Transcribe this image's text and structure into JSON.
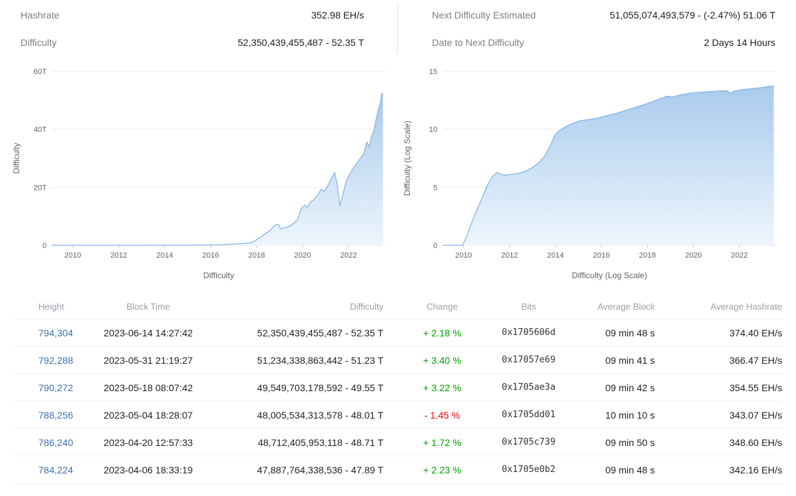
{
  "stats": {
    "left": [
      {
        "label": "Hashrate",
        "value": "352.98 EH/s"
      },
      {
        "label": "Difficulty",
        "value": "52,350,439,455,487 - 52.35 T"
      }
    ],
    "right": [
      {
        "label": "Next Difficulty Estimated",
        "value": "51,055,074,493,579 - (-2.47%) 51.06 T"
      },
      {
        "label": "Date to Next Difficulty",
        "value": "2 Days 14 Hours"
      }
    ]
  },
  "colors": {
    "link_blue": "#3d6fad",
    "change_up": "#00a000",
    "change_down": "#e60000",
    "chart_line": "#7fb0e3",
    "chart_fill_top": "#a9cbec",
    "chart_fill_bottom": "#edf5fd",
    "gridline": "#e8e8e8"
  },
  "chart_data": [
    {
      "type": "area",
      "id": "difficulty-linear",
      "title": "",
      "xlabel": "Difficulty",
      "ylabel": "Difficulty",
      "xlim": [
        2009.1,
        2023.6
      ],
      "ylim": [
        0,
        60
      ],
      "yticks": [
        {
          "v": 0,
          "label": "0"
        },
        {
          "v": 20,
          "label": "20T"
        },
        {
          "v": 40,
          "label": "40T"
        },
        {
          "v": 60,
          "label": "60T"
        }
      ],
      "xticks": [
        2010,
        2012,
        2014,
        2016,
        2018,
        2020,
        2022
      ],
      "unit": "T (trillions of difficulty)",
      "x": [
        2009.1,
        2011,
        2013,
        2015,
        2016,
        2016.5,
        2017,
        2017.4,
        2017.8,
        2018.0,
        2018.2,
        2018.4,
        2018.6,
        2018.8,
        2018.95,
        2019.05,
        2019.2,
        2019.4,
        2019.6,
        2019.8,
        2019.95,
        2020.1,
        2020.2,
        2020.35,
        2020.5,
        2020.65,
        2020.8,
        2020.95,
        2021.1,
        2021.25,
        2021.4,
        2021.5,
        2021.62,
        2021.75,
        2021.9,
        2022.05,
        2022.2,
        2022.35,
        2022.5,
        2022.65,
        2022.8,
        2022.9,
        2023.0,
        2023.1,
        2023.2,
        2023.3,
        2023.38,
        2023.45,
        2023.5
      ],
      "values": [
        0,
        0.001,
        0.004,
        0.047,
        0.11,
        0.21,
        0.42,
        0.6,
        1.0,
        1.9,
        3.0,
        4.1,
        5.2,
        6.9,
        7.2,
        5.6,
        6.1,
        6.4,
        7.5,
        9.0,
        12.8,
        13.9,
        13.0,
        15.0,
        15.8,
        17.3,
        19.3,
        18.7,
        20.6,
        23.0,
        25.0,
        21.4,
        13.6,
        17.3,
        22.3,
        24.4,
        26.6,
        28.1,
        29.8,
        31.3,
        35.6,
        34.0,
        37.6,
        39.4,
        43.5,
        46.9,
        49.0,
        52.35,
        52.3
      ]
    },
    {
      "type": "area",
      "id": "difficulty-log",
      "title": "",
      "xlabel": "Difficulty (Log Scale)",
      "ylabel": "Difficulty (Log Scale)",
      "xlim": [
        2009.1,
        2023.6
      ],
      "ylim": [
        0,
        15
      ],
      "yticks": [
        {
          "v": 0,
          "label": "0"
        },
        {
          "v": 5,
          "label": "5"
        },
        {
          "v": 10,
          "label": "10"
        },
        {
          "v": 15,
          "label": "15"
        }
      ],
      "xticks": [
        2010,
        2012,
        2014,
        2016,
        2018,
        2020,
        2022
      ],
      "unit": "log10(difficulty)",
      "x": [
        2009.1,
        2009.95,
        2010.1,
        2010.25,
        2010.4,
        2010.55,
        2010.7,
        2010.85,
        2011.0,
        2011.15,
        2011.3,
        2011.45,
        2011.6,
        2011.8,
        2012.0,
        2012.25,
        2012.5,
        2012.75,
        2013.0,
        2013.25,
        2013.5,
        2013.75,
        2014.0,
        2014.25,
        2014.5,
        2014.8,
        2015.1,
        2015.5,
        2015.9,
        2016.3,
        2016.7,
        2017.1,
        2017.5,
        2017.9,
        2018.3,
        2018.6,
        2018.85,
        2019.1,
        2019.4,
        2019.7,
        2020.0,
        2020.4,
        2020.8,
        2021.1,
        2021.45,
        2021.6,
        2021.8,
        2022.1,
        2022.4,
        2022.7,
        2023.0,
        2023.25,
        2023.5
      ],
      "values": [
        0,
        0,
        0.6,
        1.4,
        2.2,
        2.9,
        3.6,
        4.3,
        5.0,
        5.6,
        6.0,
        6.27,
        6.15,
        6.05,
        6.1,
        6.15,
        6.25,
        6.45,
        6.7,
        7.1,
        7.6,
        8.5,
        9.6,
        10.0,
        10.3,
        10.55,
        10.75,
        10.85,
        11.0,
        11.2,
        11.4,
        11.65,
        11.9,
        12.15,
        12.45,
        12.65,
        12.85,
        12.8,
        12.95,
        13.05,
        13.15,
        13.2,
        13.25,
        13.3,
        13.32,
        13.1,
        13.3,
        13.4,
        13.47,
        13.53,
        13.6,
        13.68,
        13.74
      ]
    }
  ],
  "table": {
    "columns": [
      {
        "key": "height",
        "label": "Height",
        "align": "left"
      },
      {
        "key": "block_time",
        "label": "Block Time",
        "align": "center"
      },
      {
        "key": "difficulty",
        "label": "Difficulty",
        "align": "right"
      },
      {
        "key": "change",
        "label": "Change",
        "align": "center"
      },
      {
        "key": "bits",
        "label": "Bits",
        "align": "center"
      },
      {
        "key": "avg_block",
        "label": "Average Block",
        "align": "right"
      },
      {
        "key": "avg_hashrate",
        "label": "Average Hashrate",
        "align": "right"
      }
    ],
    "rows": [
      {
        "height": "794,304",
        "block_time": "2023-06-14 14:27:42",
        "difficulty": "52,350,439,455,487 - 52.35 T",
        "change": "+ 2.18 %",
        "change_dir": "up",
        "bits": "0x1705606d",
        "avg_block": "09 min 48 s",
        "avg_hashrate": "374.40 EH/s"
      },
      {
        "height": "792,288",
        "block_time": "2023-05-31 21:19:27",
        "difficulty": "51,234,338,863,442 - 51.23 T",
        "change": "+ 3.40 %",
        "change_dir": "up",
        "bits": "0x17057e69",
        "avg_block": "09 min 41 s",
        "avg_hashrate": "366.47 EH/s"
      },
      {
        "height": "790,272",
        "block_time": "2023-05-18 08:07:42",
        "difficulty": "49,549,703,178,592 - 49.55 T",
        "change": "+ 3.22 %",
        "change_dir": "up",
        "bits": "0x1705ae3a",
        "avg_block": "09 min 42 s",
        "avg_hashrate": "354.55 EH/s"
      },
      {
        "height": "788,256",
        "block_time": "2023-05-04 18:28:07",
        "difficulty": "48,005,534,313,578 - 48.01 T",
        "change": "- 1.45 %",
        "change_dir": "down",
        "bits": "0x1705dd01",
        "avg_block": "10 min 10 s",
        "avg_hashrate": "343.07 EH/s"
      },
      {
        "height": "786,240",
        "block_time": "2023-04-20 12:57:33",
        "difficulty": "48,712,405,953,118 - 48.71 T",
        "change": "+ 1.72 %",
        "change_dir": "up",
        "bits": "0x1705c739",
        "avg_block": "09 min 50 s",
        "avg_hashrate": "348.60 EH/s"
      },
      {
        "height": "784,224",
        "block_time": "2023-04-06 18:33:19",
        "difficulty": "47,887,764,338,536 - 47.89 T",
        "change": "+ 2.23 %",
        "change_dir": "up",
        "bits": "0x1705e0b2",
        "avg_block": "09 min 48 s",
        "avg_hashrate": "342.16 EH/s"
      }
    ]
  }
}
